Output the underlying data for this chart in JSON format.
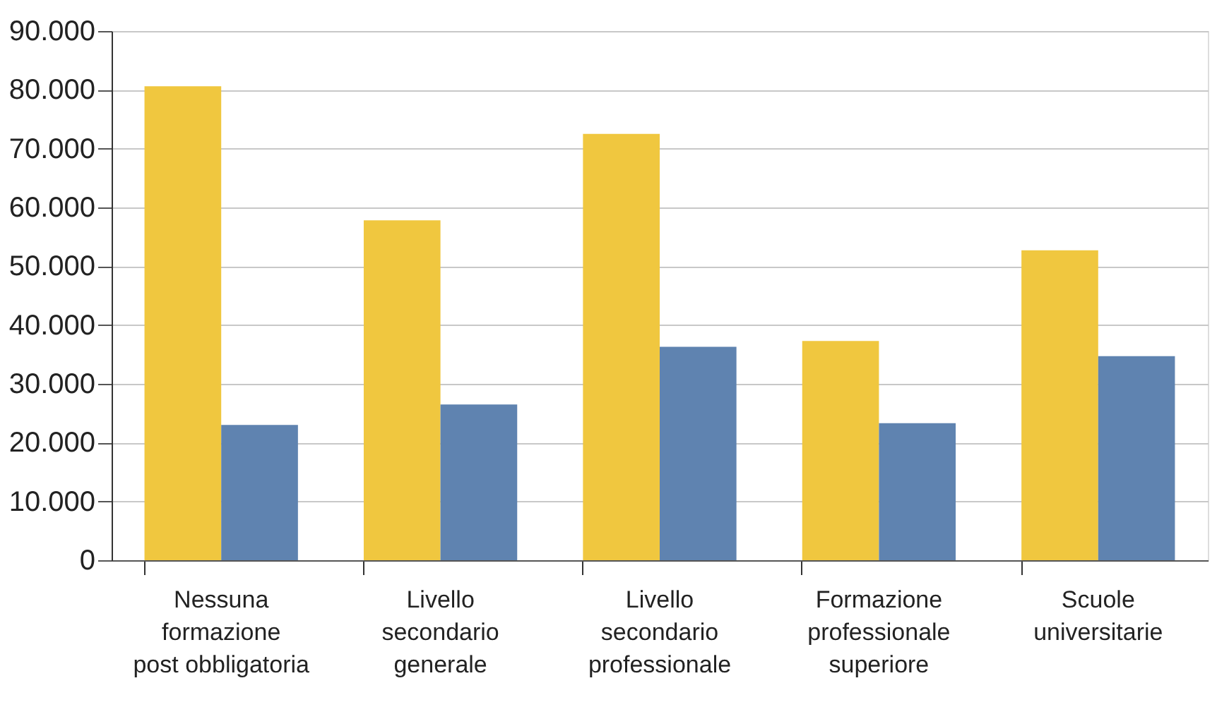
{
  "chart_data": {
    "type": "bar",
    "categories": [
      "Nessuna\nformazione\npost obbligatoria",
      "Livello\nsecondario\ngenerale",
      "Livello\nsecondario\nprofessionale",
      "Formazione\nprofessionale\nsuperiore",
      "Scuole\nuniversitarie"
    ],
    "series": [
      {
        "color": "#f0c73f",
        "values": [
          80600,
          57800,
          72500,
          37300,
          52700
        ]
      },
      {
        "color": "#5f83b0",
        "values": [
          23000,
          26500,
          36300,
          23300,
          34700
        ]
      }
    ],
    "ylim": [
      0,
      90000
    ],
    "yticks": [
      {
        "value": 0,
        "label": "0"
      },
      {
        "value": 10000,
        "label": "10.000"
      },
      {
        "value": 20000,
        "label": "20.000"
      },
      {
        "value": 30000,
        "label": "30.000"
      },
      {
        "value": 40000,
        "label": "40.000"
      },
      {
        "value": 50000,
        "label": "50.000"
      },
      {
        "value": 60000,
        "label": "60.000"
      },
      {
        "value": 70000,
        "label": "70.000"
      },
      {
        "value": 80000,
        "label": "80.000"
      },
      {
        "value": 90000,
        "label": "90.000"
      }
    ],
    "grid": "y",
    "legend": false
  }
}
